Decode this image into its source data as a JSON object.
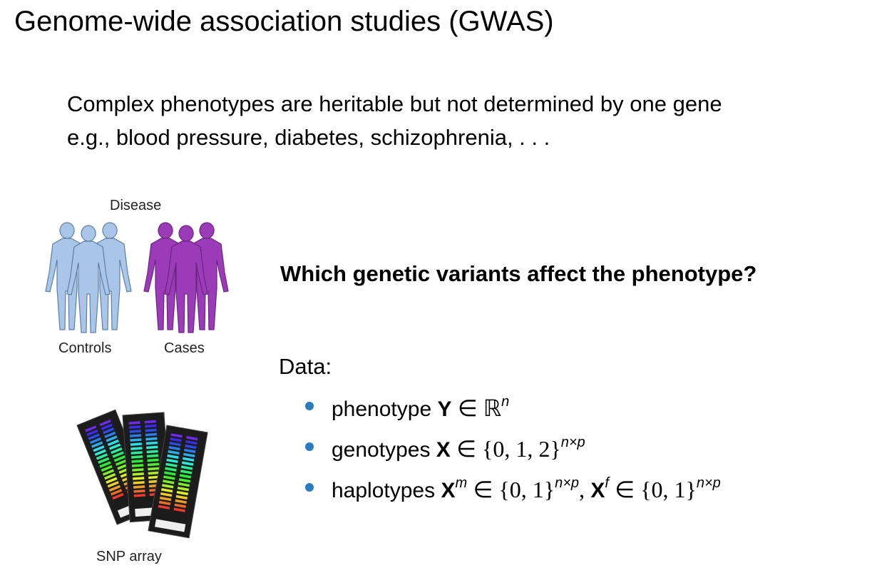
{
  "title": "Genome-wide association studies (GWAS)",
  "intro": [
    "Complex phenotypes are heritable but not determined by one gene",
    "e.g., blood pressure, diabetes, schizophrenia, . . ."
  ],
  "figure_people": {
    "top_label": "Disease",
    "labels": [
      "Controls",
      "Cases"
    ]
  },
  "figure_array": {
    "label": "SNP array"
  },
  "question": "Which genetic variants affect the phenotype?",
  "data_heading": "Data:",
  "bullets": [
    [
      "phenotype",
      "Y",
      "∈ ℝ",
      "n"
    ],
    [
      "genotypes",
      "X",
      "∈ {0, 1, 2}",
      "n×p"
    ],
    [
      "haplotypes",
      "X",
      "m",
      "∈ {0, 1}",
      "n×p",
      ",",
      "X",
      "f",
      "∈ {0, 1}",
      "n×p"
    ]
  ]
}
